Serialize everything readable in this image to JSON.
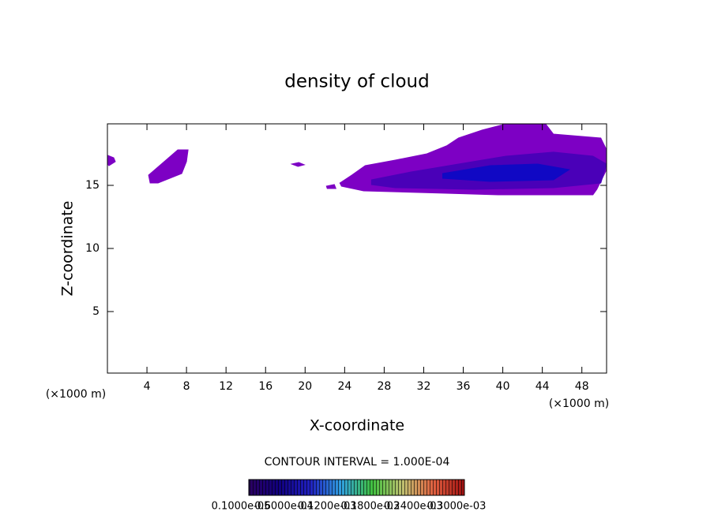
{
  "chart_data": {
    "type": "contour",
    "title": "density of cloud",
    "xlabel": "X-coordinate",
    "ylabel": "Z-coordinate",
    "x_unit_left": "(×1000 m)",
    "x_unit_right": "(×1000 m)",
    "contour_interval": "CONTOUR INTERVAL = 1.000E-04",
    "xlim": [
      0,
      50.5
    ],
    "ylim": [
      0.125,
      19.875
    ],
    "xticks": [
      4,
      8,
      12,
      16,
      20,
      24,
      28,
      32,
      36,
      40,
      44,
      48
    ],
    "yticks": [
      5,
      10,
      15
    ],
    "regions": [
      {
        "level": 1e-06,
        "color": "#7d00c4",
        "x": [
          0,
          0.64,
          0.8,
          0.16,
          0
        ],
        "z": [
          17.38,
          17.19,
          16.88,
          16.56,
          16.69
        ]
      },
      {
        "level": 1e-06,
        "color": "#7d00c4",
        "x": [
          4.16,
          5.92,
          7.12,
          8.16,
          8.0,
          7.52,
          5.12,
          4.32
        ],
        "z": [
          15.81,
          17.0,
          17.81,
          17.81,
          16.88,
          15.94,
          15.19,
          15.19
        ]
      },
      {
        "level": 1e-06,
        "color": "#7d00c4",
        "x": [
          18.64,
          19.36,
          19.92,
          19.28
        ],
        "z": [
          16.69,
          16.81,
          16.63,
          16.5
        ]
      },
      {
        "level": 1e-06,
        "color": "#7d00c4",
        "x": [
          22.16,
          22.96,
          23.12,
          22.24
        ],
        "z": [
          14.94,
          15.06,
          14.75,
          14.75
        ]
      },
      {
        "level": 1e-06,
        "color": "#7d00c4",
        "x": [
          23.52,
          24.72,
          26.08,
          29.12,
          32.32,
          34.32,
          35.52,
          37.92,
          40.32,
          44.32,
          45.12,
          49.92,
          50.5,
          50.5,
          49.52,
          49.12,
          39.52,
          33.92,
          25.92,
          23.68
        ],
        "z": [
          15.19,
          15.81,
          16.56,
          17.0,
          17.5,
          18.13,
          18.75,
          19.38,
          19.875,
          19.875,
          19.06,
          18.75,
          17.81,
          16.25,
          14.69,
          14.25,
          14.25,
          14.38,
          14.56,
          14.94
        ]
      },
      {
        "level": 6e-05,
        "color": "#4a00b8",
        "x": [
          26.72,
          30.72,
          35.52,
          40.32,
          45.12,
          49.12,
          50.5,
          49.92,
          45.12,
          37.12,
          29.12,
          26.72
        ],
        "z": [
          15.44,
          16.06,
          16.69,
          17.31,
          17.63,
          17.31,
          16.69,
          15.19,
          14.81,
          14.69,
          14.81,
          15.06
        ]
      },
      {
        "level": 0.00012,
        "color": "#1008c4",
        "x": [
          33.92,
          38.72,
          43.52,
          46.72,
          45.12,
          38.72,
          33.92
        ],
        "z": [
          15.94,
          16.56,
          16.69,
          16.25,
          15.44,
          15.31,
          15.56
        ]
      }
    ],
    "colorbar": {
      "colors": [
        "#2a0060",
        "#10007f",
        "#2020c0",
        "#30a0e0",
        "#40c040",
        "#c0c070",
        "#e06040",
        "#a01010"
      ],
      "labels": [
        "0.1000e-05",
        "0.6000e-04",
        "0.1200e-03",
        "0.1800e-03",
        "0.2400e-03",
        "0.3000e-03"
      ]
    }
  }
}
